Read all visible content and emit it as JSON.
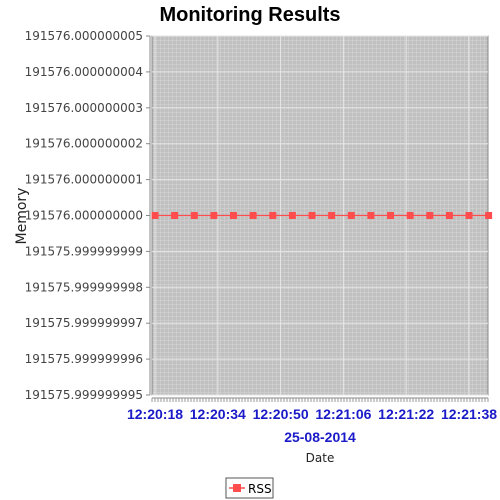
{
  "chart_data": {
    "type": "line",
    "title": "Monitoring Results",
    "ylabel": "Memory",
    "xlabel": "Date",
    "x_date_label": "25-08-2014",
    "ylim": [
      191575.999999995,
      191576.000000005
    ],
    "y_ticks": [
      "191576.000000005",
      "191576.000000004",
      "191576.000000003",
      "191576.000000002",
      "191576.000000001",
      "191576.000000000",
      "191575.999999999",
      "191575.999999998",
      "191575.999999997",
      "191575.999999996",
      "191575.999999995"
    ],
    "x_ticks": [
      "12:20:18",
      "12:20:34",
      "12:20:50",
      "12:21:06",
      "12:21:22",
      "12:21:38"
    ],
    "grid": true,
    "legend_position": "bottom",
    "series": [
      {
        "name": "RSS",
        "color": "#ff4d4d",
        "x": [
          "12:20:18",
          "12:20:23",
          "12:20:28",
          "12:20:33",
          "12:20:38",
          "12:20:43",
          "12:20:48",
          "12:20:53",
          "12:20:58",
          "12:21:03",
          "12:21:08",
          "12:21:13",
          "12:21:18",
          "12:21:23",
          "12:21:28",
          "12:21:33",
          "12:21:38",
          "12:21:43"
        ],
        "values": [
          191576.0,
          191576.0,
          191576.0,
          191576.0,
          191576.0,
          191576.0,
          191576.0,
          191576.0,
          191576.0,
          191576.0,
          191576.0,
          191576.0,
          191576.0,
          191576.0,
          191576.0,
          191576.0,
          191576.0,
          191576.0
        ]
      }
    ]
  }
}
